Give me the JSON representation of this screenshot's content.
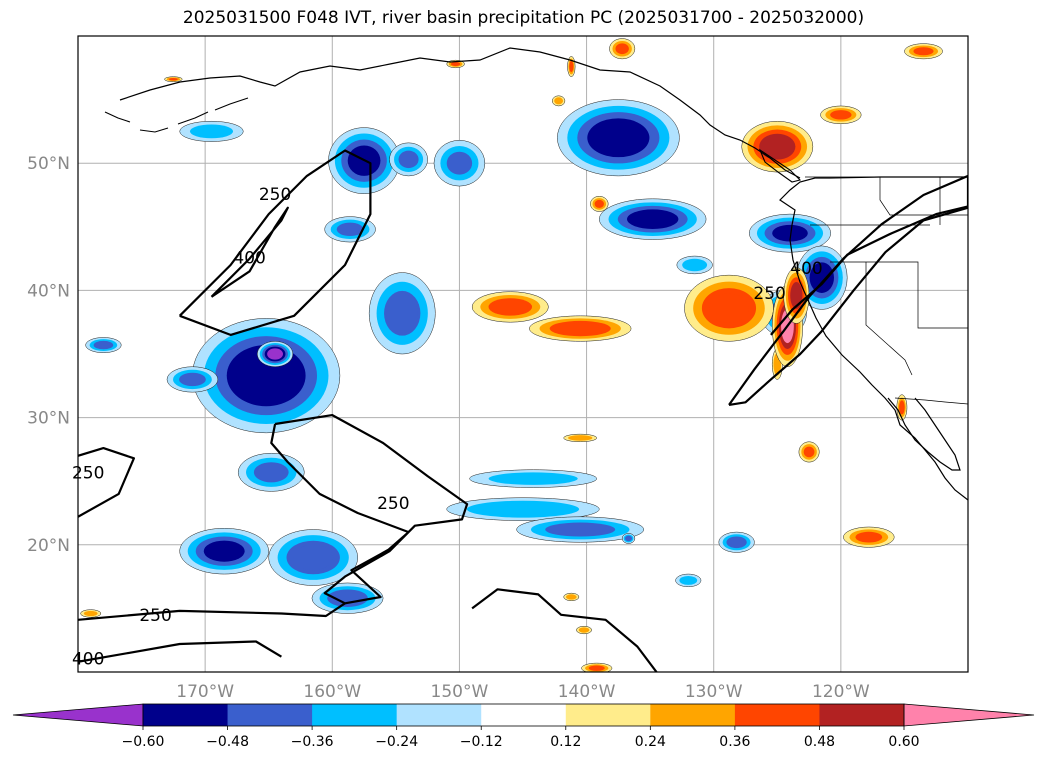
{
  "title": "2025031500 F048 IVT, river basin precipitation PC (2025031700 - 2025032000)",
  "map": {
    "projection": "PlateCarree",
    "lon_range": [
      -180,
      -110
    ],
    "lat_range": [
      10,
      60
    ],
    "grid": true,
    "lat_ticks": [
      {
        "value": 20,
        "label": "20°N"
      },
      {
        "value": 30,
        "label": "30°N"
      },
      {
        "value": 40,
        "label": "40°N"
      },
      {
        "value": 50,
        "label": "50°N"
      }
    ],
    "lon_ticks": [
      {
        "value": -170,
        "label": "170°W"
      },
      {
        "value": -160,
        "label": "160°W"
      },
      {
        "value": -150,
        "label": "150°W"
      },
      {
        "value": -140,
        "label": "140°W"
      },
      {
        "value": -130,
        "label": "130°W"
      },
      {
        "value": -120,
        "label": "120°W"
      }
    ],
    "ivt_contours": [
      {
        "level": "250",
        "label_lon": -164.5,
        "label_lat": 47.5
      },
      {
        "level": "400",
        "label_lon": -166.5,
        "label_lat": 42.5
      },
      {
        "level": "250",
        "label_lon": -179.2,
        "label_lat": 25.6
      },
      {
        "level": "250",
        "label_lon": -155.2,
        "label_lat": 23.2
      },
      {
        "level": "250",
        "label_lon": -173.9,
        "label_lat": 14.4
      },
      {
        "level": "400",
        "label_lon": -179.2,
        "label_lat": 11.0
      },
      {
        "level": "250",
        "label_lon": -125.6,
        "label_lat": 39.7
      },
      {
        "level": "400",
        "label_lon": -122.7,
        "label_lat": 41.7
      }
    ]
  },
  "colorbar": {
    "extend": "both",
    "levels": [
      -0.6,
      -0.48,
      -0.36,
      -0.24,
      -0.12,
      0.12,
      0.24,
      0.36,
      0.48,
      0.6
    ],
    "tick_labels": [
      "−0.60",
      "−0.48",
      "−0.36",
      "−0.24",
      "−0.12",
      "0.12",
      "0.24",
      "0.36",
      "0.48",
      "0.60"
    ],
    "colors": [
      "#9932cc",
      "#00008b",
      "#3a5fcd",
      "#00bfff",
      "#b0e2ff",
      "#ffffff",
      "#ffec8b",
      "#ffa500",
      "#ff4500",
      "#b22222",
      "#ff82ab"
    ]
  },
  "precip_blobs": [
    {
      "lon": -165.2,
      "lat": 33.3,
      "rx": 5.8,
      "ry": 4.5,
      "pc": -0.58
    },
    {
      "lon": -164.5,
      "lat": 35.0,
      "rx": 1.4,
      "ry": 1.0,
      "pc": -0.65
    },
    {
      "lon": -154.5,
      "lat": 38.2,
      "rx": 2.6,
      "ry": 3.2,
      "pc": -0.4
    },
    {
      "lon": -157.5,
      "lat": 50.2,
      "rx": 2.8,
      "ry": 2.6,
      "pc": -0.5
    },
    {
      "lon": -154.0,
      "lat": 50.3,
      "rx": 1.5,
      "ry": 1.3,
      "pc": -0.38
    },
    {
      "lon": -150.0,
      "lat": 50.0,
      "rx": 2.0,
      "ry": 1.8,
      "pc": -0.36
    },
    {
      "lon": -137.5,
      "lat": 52.0,
      "rx": 4.8,
      "ry": 3.0,
      "pc": -0.55
    },
    {
      "lon": -134.8,
      "lat": 45.6,
      "rx": 4.2,
      "ry": 1.6,
      "pc": -0.52
    },
    {
      "lon": -158.6,
      "lat": 44.8,
      "rx": 2.0,
      "ry": 1.0,
      "pc": -0.38
    },
    {
      "lon": -171.0,
      "lat": 33.0,
      "rx": 2.0,
      "ry": 1.0,
      "pc": -0.38
    },
    {
      "lon": -178.0,
      "lat": 35.7,
      "rx": 1.4,
      "ry": 0.6,
      "pc": -0.4
    },
    {
      "lon": -168.5,
      "lat": 19.5,
      "rx": 3.5,
      "ry": 1.8,
      "pc": -0.5
    },
    {
      "lon": -161.5,
      "lat": 19.0,
      "rx": 3.5,
      "ry": 2.2,
      "pc": -0.45
    },
    {
      "lon": -158.8,
      "lat": 15.8,
      "rx": 2.8,
      "ry": 1.2,
      "pc": -0.42
    },
    {
      "lon": -164.8,
      "lat": 25.7,
      "rx": 2.6,
      "ry": 1.5,
      "pc": -0.38
    },
    {
      "lon": -144.2,
      "lat": 25.2,
      "rx": 5.0,
      "ry": 0.7,
      "pc": -0.3
    },
    {
      "lon": -145.0,
      "lat": 22.8,
      "rx": 6.0,
      "ry": 0.9,
      "pc": -0.34
    },
    {
      "lon": -140.5,
      "lat": 21.2,
      "rx": 5.0,
      "ry": 1.0,
      "pc": -0.4
    },
    {
      "lon": -169.5,
      "lat": 52.5,
      "rx": 2.5,
      "ry": 0.8,
      "pc": -0.28
    },
    {
      "lon": -124.0,
      "lat": 44.5,
      "rx": 3.2,
      "ry": 1.5,
      "pc": -0.48
    },
    {
      "lon": -121.5,
      "lat": 41.0,
      "rx": 2.0,
      "ry": 2.5,
      "pc": -0.52
    },
    {
      "lon": -124.5,
      "lat": 38.2,
      "rx": 1.8,
      "ry": 1.8,
      "pc": -0.45
    },
    {
      "lon": -131.5,
      "lat": 42.0,
      "rx": 1.4,
      "ry": 0.7,
      "pc": -0.3
    },
    {
      "lon": -128.2,
      "lat": 20.2,
      "rx": 1.4,
      "ry": 0.8,
      "pc": -0.42
    },
    {
      "lon": -125.0,
      "lat": 34.2,
      "rx": 0.4,
      "ry": 1.2,
      "pc": 0.35
    },
    {
      "lon": -140.5,
      "lat": 37.0,
      "rx": 4.0,
      "ry": 1.0,
      "pc": 0.45
    },
    {
      "lon": -146.0,
      "lat": 38.7,
      "rx": 3.0,
      "ry": 1.2,
      "pc": 0.42
    },
    {
      "lon": -128.8,
      "lat": 38.6,
      "rx": 3.5,
      "ry": 2.6,
      "pc": 0.46
    },
    {
      "lon": -124.2,
      "lat": 37.2,
      "rx": 1.2,
      "ry": 3.2,
      "pc": 0.62
    },
    {
      "lon": -123.5,
      "lat": 39.6,
      "rx": 1.0,
      "ry": 2.2,
      "pc": 0.52
    },
    {
      "lon": -125.0,
      "lat": 51.3,
      "rx": 2.8,
      "ry": 2.0,
      "pc": 0.55
    },
    {
      "lon": -137.2,
      "lat": 59.0,
      "rx": 1.0,
      "ry": 0.8,
      "pc": 0.38
    },
    {
      "lon": -113.5,
      "lat": 58.8,
      "rx": 1.5,
      "ry": 0.6,
      "pc": 0.38
    },
    {
      "lon": -120.0,
      "lat": 53.8,
      "rx": 1.6,
      "ry": 0.7,
      "pc": 0.38
    },
    {
      "lon": -117.8,
      "lat": 20.6,
      "rx": 2.0,
      "ry": 0.8,
      "pc": 0.38
    },
    {
      "lon": -122.5,
      "lat": 27.3,
      "rx": 0.8,
      "ry": 0.8,
      "pc": 0.38
    },
    {
      "lon": -115.2,
      "lat": 30.8,
      "rx": 0.4,
      "ry": 1.0,
      "pc": 0.4
    },
    {
      "lon": -179.0,
      "lat": 14.6,
      "rx": 0.8,
      "ry": 0.3,
      "pc": 0.28
    },
    {
      "lon": -140.2,
      "lat": 13.3,
      "rx": 0.6,
      "ry": 0.3,
      "pc": 0.3
    },
    {
      "lon": -139.2,
      "lat": 10.3,
      "rx": 1.2,
      "ry": 0.4,
      "pc": 0.38
    },
    {
      "lon": -139.0,
      "lat": 46.8,
      "rx": 0.7,
      "ry": 0.6,
      "pc": 0.38
    },
    {
      "lon": -140.5,
      "lat": 28.4,
      "rx": 1.3,
      "ry": 0.3,
      "pc": 0.34
    },
    {
      "lon": -141.2,
      "lat": 15.9,
      "rx": 0.6,
      "ry": 0.3,
      "pc": 0.3
    },
    {
      "lon": -150.3,
      "lat": 57.8,
      "rx": 0.7,
      "ry": 0.3,
      "pc": 0.38
    },
    {
      "lon": -141.2,
      "lat": 57.6,
      "rx": 0.3,
      "ry": 0.8,
      "pc": 0.4
    },
    {
      "lon": -142.2,
      "lat": 54.9,
      "rx": 0.5,
      "ry": 0.4,
      "pc": 0.3
    },
    {
      "lon": -172.5,
      "lat": 56.6,
      "rx": 0.7,
      "ry": 0.2,
      "pc": 0.36
    },
    {
      "lon": -136.7,
      "lat": 20.5,
      "rx": 0.5,
      "ry": 0.4,
      "pc": -0.4
    },
    {
      "lon": -132.0,
      "lat": 17.2,
      "rx": 1.0,
      "ry": 0.5,
      "pc": -0.3
    }
  ],
  "ivt_paths_lonlat": [
    [
      [
        -172,
        38
      ],
      [
        -168,
        42
      ],
      [
        -165,
        46
      ],
      [
        -162,
        49
      ],
      [
        -159,
        51
      ],
      [
        -157,
        50
      ],
      [
        -157,
        46
      ],
      [
        -159,
        42
      ],
      [
        -163,
        38
      ],
      [
        -168,
        36.5
      ],
      [
        -172,
        38
      ]
    ],
    [
      [
        -169.5,
        39.5
      ],
      [
        -166.5,
        42.5
      ],
      [
        -164,
        45.5
      ],
      [
        -163.5,
        46.5
      ],
      [
        -164.5,
        45.0
      ],
      [
        -166.5,
        41.5
      ],
      [
        -169.5,
        39.5
      ]
    ],
    [
      [
        -180,
        22.2
      ],
      [
        -176.8,
        24.0
      ],
      [
        -175.6,
        26.8
      ],
      [
        -178.0,
        27.6
      ],
      [
        -180,
        27.0
      ]
    ],
    [
      [
        -164.5,
        29.5
      ],
      [
        -160,
        30.2
      ],
      [
        -156,
        28.0
      ],
      [
        -152.5,
        25.4
      ],
      [
        -149.4,
        23.2
      ],
      [
        -149.8,
        22.0
      ],
      [
        -153.5,
        21.5
      ],
      [
        -155.5,
        19.5
      ],
      [
        -159,
        17.5
      ],
      [
        -160.6,
        16.2
      ],
      [
        -159,
        15.4
      ],
      [
        -156.2,
        15.9
      ],
      [
        -158.5,
        18.0
      ],
      [
        -155.6,
        19.6
      ],
      [
        -154,
        21.0
      ],
      [
        -158,
        22.5
      ],
      [
        -161,
        24.0
      ],
      [
        -163.5,
        26.5
      ],
      [
        -164.8,
        28.0
      ],
      [
        -164.5,
        29.5
      ]
    ],
    [
      [
        -180,
        14.1
      ],
      [
        -172,
        14.8
      ],
      [
        -164,
        14.6
      ],
      [
        -160.5,
        14.4
      ],
      [
        -159,
        15.4
      ]
    ],
    [
      [
        -149,
        15.0
      ],
      [
        -147,
        16.5
      ],
      [
        -143.8,
        16.1
      ],
      [
        -142,
        14.5
      ],
      [
        -138.5,
        14.1
      ],
      [
        -136,
        12.0
      ],
      [
        -134.5,
        10.0
      ]
    ],
    [
      [
        -180,
        10.8
      ],
      [
        -176,
        11.5
      ],
      [
        -172,
        12.2
      ],
      [
        -166,
        12.4
      ],
      [
        -164,
        11.2
      ]
    ],
    [
      [
        -128.8,
        31.0
      ],
      [
        -126.8,
        33.8
      ],
      [
        -124.5,
        36.8
      ],
      [
        -122.5,
        39.5
      ],
      [
        -119.8,
        42.5
      ],
      [
        -116.8,
        45.2
      ],
      [
        -113.5,
        47.5
      ],
      [
        -110,
        49.0
      ],
      [
        -110,
        46.5
      ],
      [
        -113.5,
        45.5
      ],
      [
        -116.5,
        43.0
      ],
      [
        -119.0,
        40.0
      ],
      [
        -121.5,
        36.8
      ],
      [
        -123.2,
        35.0
      ],
      [
        -125.5,
        33.0
      ],
      [
        -127.5,
        31.2
      ],
      [
        -128.8,
        31.0
      ]
    ],
    [
      [
        -125.5,
        36.5
      ],
      [
        -123.8,
        38.5
      ],
      [
        -121.5,
        40.5
      ],
      [
        -119.5,
        42.8
      ],
      [
        -116.0,
        44.5
      ],
      [
        -112.5,
        46.0
      ],
      [
        -110,
        46.6
      ]
    ]
  ]
}
